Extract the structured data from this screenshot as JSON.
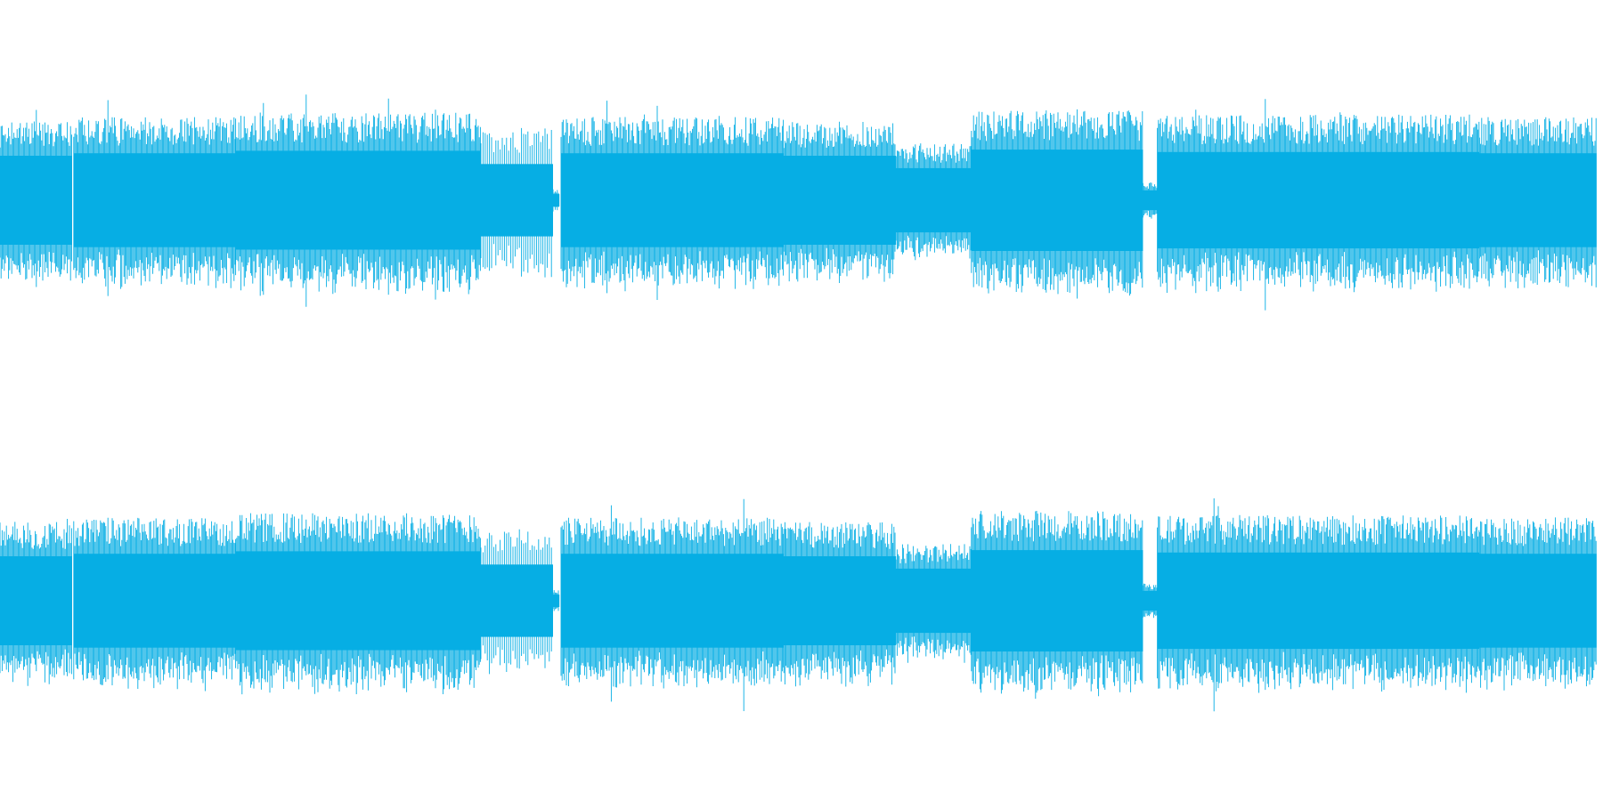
{
  "waveform": {
    "color": "#06aee4",
    "background": "#ffffff",
    "channels": [
      {
        "id": "left"
      },
      {
        "id": "right"
      }
    ],
    "segments": [
      {
        "start": 0.0,
        "end": 0.045,
        "level": 0.72
      },
      {
        "start": 0.046,
        "end": 0.147,
        "level": 0.76
      },
      {
        "start": 0.147,
        "end": 0.3,
        "level": 0.8
      },
      {
        "start": 0.3,
        "end": 0.345,
        "level": 0.66,
        "sparse": true
      },
      {
        "start": 0.345,
        "end": 0.349,
        "level": 0.1
      },
      {
        "start": 0.35,
        "end": 0.489,
        "level": 0.76
      },
      {
        "start": 0.489,
        "end": 0.559,
        "level": 0.72
      },
      {
        "start": 0.559,
        "end": 0.606,
        "level": 0.52
      },
      {
        "start": 0.606,
        "end": 0.713,
        "level": 0.82
      },
      {
        "start": 0.713,
        "end": 0.722,
        "level": 0.16
      },
      {
        "start": 0.722,
        "end": 0.923,
        "level": 0.78
      },
      {
        "start": 0.923,
        "end": 0.996,
        "level": 0.76
      }
    ]
  }
}
